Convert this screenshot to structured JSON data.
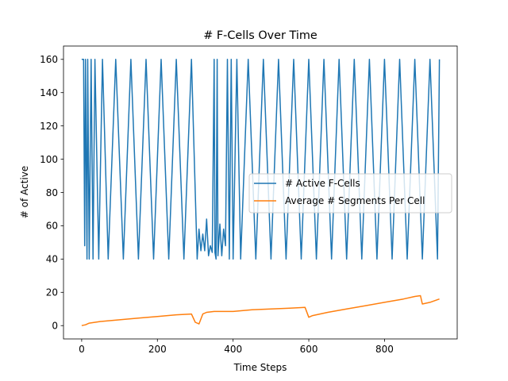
{
  "chart_data": {
    "type": "line",
    "title": "# F-Cells Over Time",
    "xlabel": "Time Steps",
    "ylabel": "# of Active",
    "xlim": [
      -48,
      992
    ],
    "ylim": [
      -8,
      168
    ],
    "xticks": [
      0,
      200,
      400,
      600,
      800
    ],
    "yticks": [
      0,
      20,
      40,
      60,
      80,
      100,
      120,
      140,
      160
    ],
    "grid": false,
    "legend_position": "center-right",
    "series": [
      {
        "name": "# Active F-Cells",
        "color": "#1f77b4",
        "values_description_points": {
          "x": [
            0,
            5,
            8,
            10,
            14,
            16,
            20,
            25,
            30,
            35,
            45,
            55,
            70,
            90,
            110,
            130,
            150,
            170,
            190,
            210,
            230,
            250,
            270,
            290,
            305,
            310,
            315,
            320,
            325,
            330,
            335,
            340,
            345,
            350,
            352,
            355,
            358,
            360,
            365,
            370,
            375,
            380,
            385,
            390,
            395,
            400,
            410,
            420,
            440,
            460,
            480,
            500,
            520,
            540,
            560,
            580,
            600,
            620,
            640,
            660,
            680,
            700,
            720,
            740,
            760,
            780,
            800,
            820,
            840,
            860,
            880,
            900,
            920,
            940,
            945
          ],
          "y": [
            160,
            160,
            48,
            160,
            40,
            160,
            40,
            160,
            40,
            160,
            40,
            160,
            40,
            160,
            40,
            160,
            40,
            160,
            40,
            160,
            40,
            160,
            40,
            160,
            40,
            58,
            45,
            55,
            45,
            64,
            42,
            48,
            44,
            160,
            44,
            40,
            160,
            42,
            61,
            42,
            58,
            48,
            160,
            40,
            160,
            40,
            160,
            40,
            160,
            40,
            160,
            40,
            160,
            40,
            160,
            40,
            160,
            40,
            160,
            40,
            160,
            40,
            160,
            40,
            160,
            40,
            160,
            40,
            160,
            40,
            160,
            40,
            160,
            40,
            160
          ]
        }
      },
      {
        "name": "Average # Segments Per Cell",
        "color": "#ff7f0e",
        "values_description_points": {
          "x": [
            0,
            10,
            20,
            50,
            100,
            150,
            200,
            250,
            290,
            300,
            310,
            320,
            330,
            350,
            400,
            450,
            500,
            550,
            590,
            600,
            610,
            650,
            700,
            750,
            800,
            850,
            880,
            895,
            900,
            920,
            945
          ],
          "y": [
            0,
            0.5,
            1.5,
            2.5,
            3.5,
            4.5,
            5.5,
            6.5,
            7,
            2,
            1,
            7,
            8,
            8.5,
            8.5,
            9.5,
            10,
            10.5,
            11,
            5,
            6,
            8,
            10,
            12,
            14,
            16,
            17.5,
            18,
            13,
            14,
            16
          ]
        }
      }
    ]
  }
}
